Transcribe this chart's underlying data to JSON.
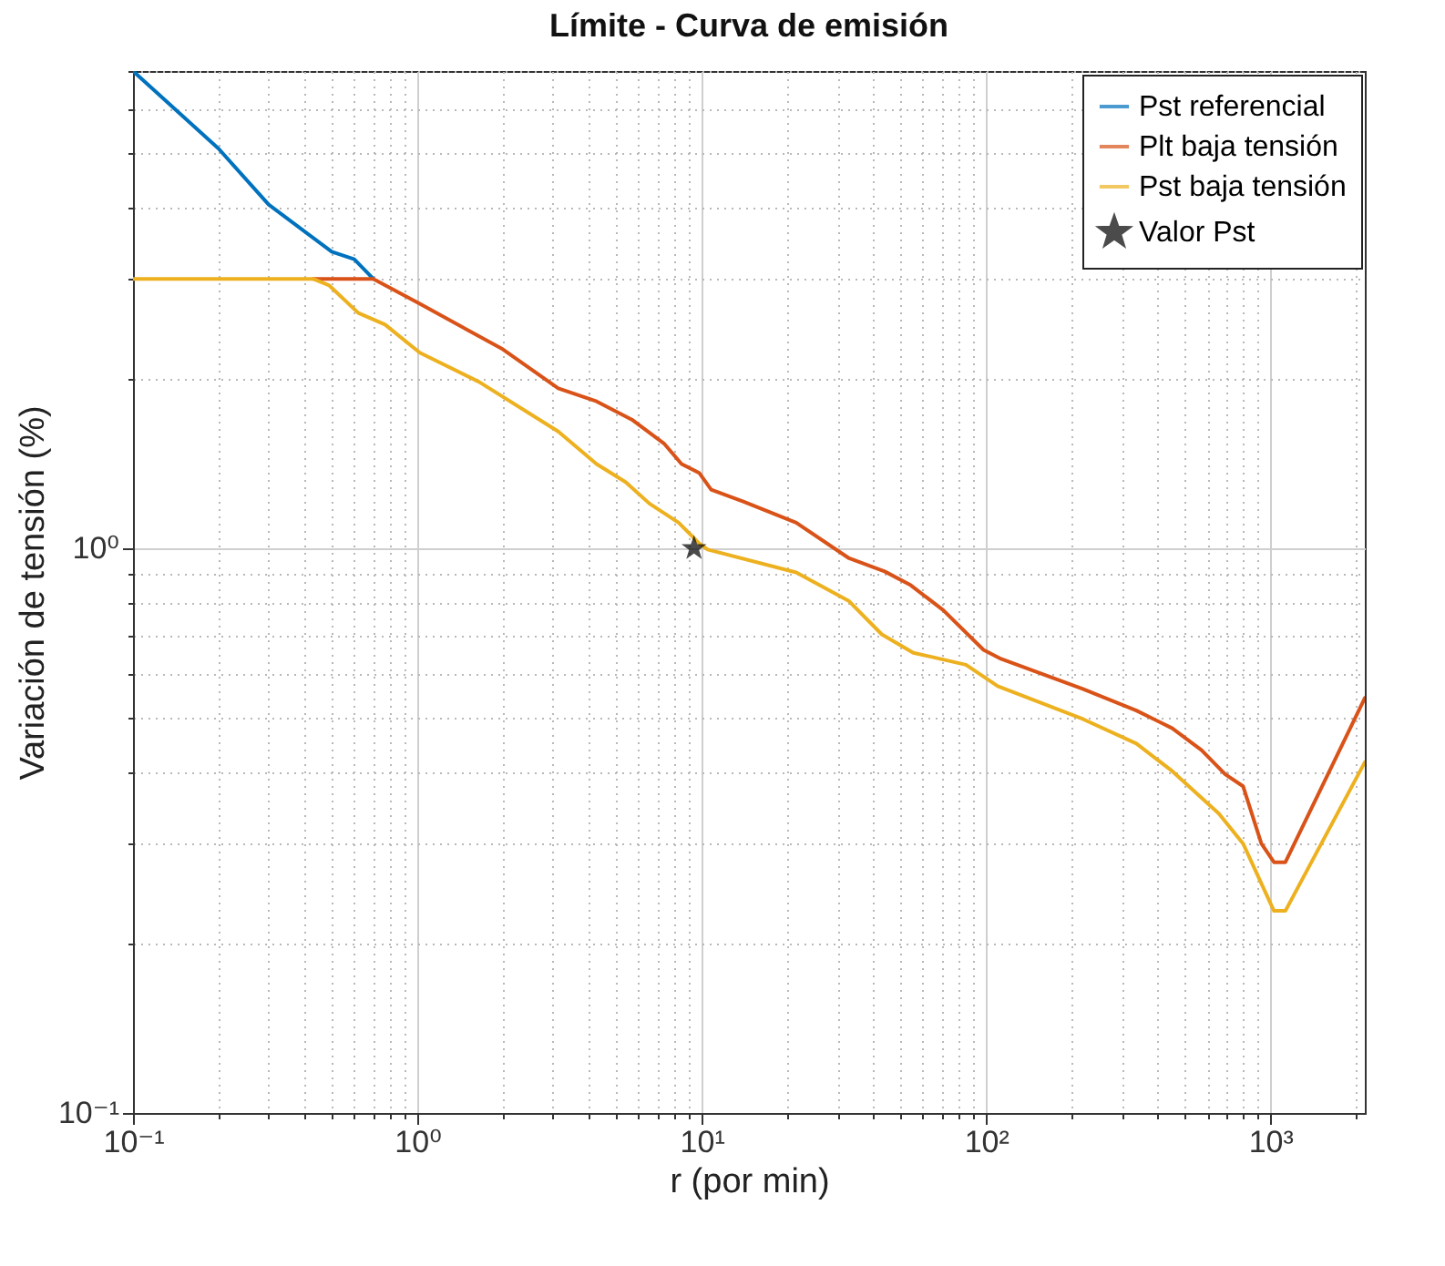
{
  "chart_data": {
    "type": "line",
    "title": "Límite - Curva de emisión",
    "xlabel": "r (por min)",
    "ylabel": "Variación de tensión (%)",
    "log": "xy",
    "grid": true,
    "legend": "top right",
    "line_style": "solid",
    "xlim": [
      0.1,
      2150
    ],
    "ylim": [
      0.1,
      7
    ],
    "xticks": [
      {
        "value": 0.1,
        "label": "10⁻¹"
      },
      {
        "value": 0.2,
        "label": null
      },
      {
        "value": 0.3,
        "label": null
      },
      {
        "value": 0.4,
        "label": null
      },
      {
        "value": 0.5,
        "label": null
      },
      {
        "value": 0.6,
        "label": null
      },
      {
        "value": 0.7,
        "label": null
      },
      {
        "value": 0.8,
        "label": null
      },
      {
        "value": 0.9,
        "label": null
      },
      {
        "value": 1,
        "label": "10⁰"
      },
      {
        "value": 2,
        "label": null
      },
      {
        "value": 3,
        "label": null
      },
      {
        "value": 4,
        "label": null
      },
      {
        "value": 5,
        "label": null
      },
      {
        "value": 6,
        "label": null
      },
      {
        "value": 7,
        "label": null
      },
      {
        "value": 8,
        "label": null
      },
      {
        "value": 9,
        "label": null
      },
      {
        "value": 10,
        "label": "10¹"
      },
      {
        "value": 20,
        "label": null
      },
      {
        "value": 30,
        "label": null
      },
      {
        "value": 40,
        "label": null
      },
      {
        "value": 50,
        "label": null
      },
      {
        "value": 60,
        "label": null
      },
      {
        "value": 70,
        "label": null
      },
      {
        "value": 80,
        "label": null
      },
      {
        "value": 90,
        "label": null
      },
      {
        "value": 100,
        "label": "10²"
      },
      {
        "value": 200,
        "label": null
      },
      {
        "value": 300,
        "label": null
      },
      {
        "value": 400,
        "label": null
      },
      {
        "value": 500,
        "label": null
      },
      {
        "value": 600,
        "label": null
      },
      {
        "value": 700,
        "label": null
      },
      {
        "value": 800,
        "label": null
      },
      {
        "value": 900,
        "label": null
      },
      {
        "value": 1000,
        "label": "10³"
      },
      {
        "value": 2000,
        "label": null
      }
    ],
    "yticks": [
      {
        "value": 0.1,
        "label": "10⁻¹"
      },
      {
        "value": 0.2,
        "label": null
      },
      {
        "value": 0.3,
        "label": null
      },
      {
        "value": 0.4,
        "label": null
      },
      {
        "value": 0.5,
        "label": null
      },
      {
        "value": 0.6,
        "label": null
      },
      {
        "value": 0.7,
        "label": null
      },
      {
        "value": 0.8,
        "label": null
      },
      {
        "value": 0.9,
        "label": null
      },
      {
        "value": 1,
        "label": "10⁰"
      },
      {
        "value": 2,
        "label": null
      },
      {
        "value": 3,
        "label": null
      },
      {
        "value": 4,
        "label": null
      },
      {
        "value": 5,
        "label": null
      },
      {
        "value": 6,
        "label": null
      },
      {
        "value": 7,
        "label": null
      }
    ],
    "series": [
      {
        "name": "Pst referencial",
        "color": "#0072bd",
        "x": [
          0.1,
          0.2,
          0.3,
          0.5,
          0.6,
          0.7
        ],
        "values": [
          7,
          5.1,
          4.06,
          3.35,
          3.25,
          3.0
        ]
      },
      {
        "name": "Plt baja tensión",
        "color": "#d95319",
        "x": [
          0.43,
          0.7,
          1.02,
          2.0,
          3.13,
          4.27,
          5.68,
          7.4,
          8.5,
          9.8,
          10.8,
          14,
          21.5,
          33,
          44,
          54.4,
          70.7,
          98,
          113,
          220,
          338,
          452,
          573,
          694,
          802,
          930,
          1030,
          1130,
          2150
        ],
        "values": [
          3.0,
          3.0,
          2.71,
          2.25,
          1.92,
          1.82,
          1.69,
          1.53,
          1.41,
          1.36,
          1.27,
          1.21,
          1.11,
          0.96,
          0.91,
          0.86,
          0.777,
          0.661,
          0.637,
          0.563,
          0.516,
          0.48,
          0.439,
          0.398,
          0.379,
          0.3,
          0.278,
          0.278,
          0.543
        ]
      },
      {
        "name": "Pst baja tensión",
        "color": "#edb120",
        "x": [
          0.1,
          0.43,
          0.49,
          0.62,
          0.77,
          1.02,
          1.65,
          3.13,
          4.27,
          5.4,
          6.55,
          8.3,
          9.8,
          10.5,
          21.5,
          33,
          43,
          55.5,
          85,
          110,
          220,
          338,
          452,
          659,
          802,
          1030,
          1130,
          2150
        ],
        "values": [
          3.0,
          3.0,
          2.92,
          2.61,
          2.49,
          2.22,
          1.97,
          1.61,
          1.41,
          1.31,
          1.2,
          1.11,
          1.02,
          0.995,
          0.906,
          0.806,
          0.704,
          0.653,
          0.622,
          0.57,
          0.498,
          0.451,
          0.403,
          0.339,
          0.3,
          0.228,
          0.228,
          0.418
        ]
      },
      {
        "name": "Valor Pst",
        "type": "scatter",
        "marker": "star",
        "color": "#000000",
        "x": [
          9.4
        ],
        "values": [
          1
        ]
      }
    ]
  }
}
